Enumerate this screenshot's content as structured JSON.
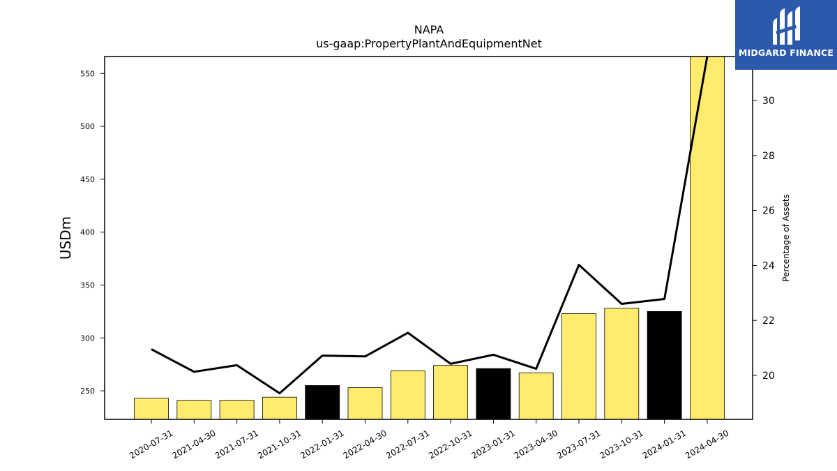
{
  "chart_data": {
    "type": "bar",
    "title": "NAPA",
    "subtitle": "us-gaap:PropertyPlantAndEquipmentNet",
    "ylabel": "USDm",
    "y2label": "Percentage of Assets",
    "ylim": [
      223,
      566
    ],
    "y2lim": [
      18.4,
      31.6
    ],
    "yticks": [
      250,
      300,
      350,
      400,
      450,
      500,
      550
    ],
    "y2ticks": [
      20,
      22,
      24,
      26,
      28,
      30
    ],
    "categories": [
      "2020-07-31",
      "2021-04-30",
      "2021-07-31",
      "2021-10-31",
      "2022-01-31",
      "2022-04-30",
      "2022-07-31",
      "2022-10-31",
      "2023-01-31",
      "2023-04-30",
      "2023-07-31",
      "2023-10-31",
      "2024-01-31",
      "2024-04-30"
    ],
    "series": [
      {
        "type": "bar",
        "values": [
          243,
          241,
          241,
          244,
          255,
          253,
          269,
          274,
          271,
          267,
          323,
          328,
          325,
          566
        ],
        "colors": [
          "#ffec6e",
          "#ffec6e",
          "#ffec6e",
          "#ffec6e",
          "#000000",
          "#ffec6e",
          "#ffec6e",
          "#ffec6e",
          "#000000",
          "#ffec6e",
          "#ffec6e",
          "#ffec6e",
          "#000000",
          "#ffec6e"
        ]
      },
      {
        "type": "line",
        "axis": "right",
        "values": [
          20.95,
          20.13,
          20.37,
          19.35,
          20.72,
          20.69,
          21.55,
          20.42,
          20.75,
          20.24,
          24.02,
          22.6,
          22.78,
          31.6
        ]
      }
    ],
    "grid": false
  },
  "logo": {
    "text": "MIDGARD FINANCE",
    "icon": "midgard-logo-icon"
  }
}
